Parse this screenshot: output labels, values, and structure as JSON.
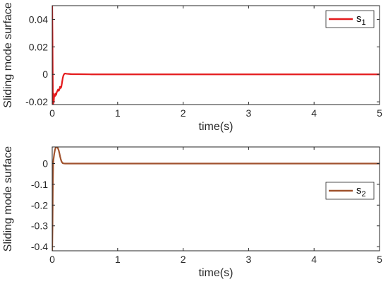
{
  "chart_data": [
    {
      "type": "line",
      "xlabel": "time(s)",
      "ylabel": "Sliding mode surface",
      "xlim": [
        0,
        5
      ],
      "ylim": [
        -0.022,
        0.05
      ],
      "xticks": [
        0,
        1,
        2,
        3,
        4,
        5
      ],
      "yticks": [
        -0.02,
        0,
        0.02,
        0.04
      ],
      "xtick_labels": [
        "0",
        "1",
        "2",
        "3",
        "4",
        "5"
      ],
      "ytick_labels": [
        "-0.02",
        "0",
        "0.02",
        "0.04"
      ],
      "grid": false,
      "legend_position": "top-right",
      "series": [
        {
          "name": "s",
          "name_sub": "1",
          "color": "#e41a1c",
          "x": [
            0,
            0.004,
            0.008,
            0.012,
            0.016,
            0.02,
            0.024,
            0.03,
            0.04,
            0.05,
            0.06,
            0.07,
            0.08,
            0.09,
            0.1,
            0.11,
            0.12,
            0.13,
            0.14,
            0.15,
            0.16,
            0.17,
            0.18,
            0.19,
            0.2,
            0.22,
            0.25,
            0.3,
            0.4,
            0.6,
            1,
            1.5,
            2,
            2.5,
            3,
            3.5,
            4,
            4.5,
            5
          ],
          "y": [
            0.05,
            0.03,
            0.0,
            -0.02,
            -0.022,
            -0.014,
            -0.02,
            -0.015,
            -0.016,
            -0.014,
            -0.015,
            -0.013,
            -0.012,
            -0.011,
            -0.012,
            -0.011,
            -0.009,
            -0.01,
            -0.009,
            -0.006,
            -0.003,
            -0.001,
            0.0,
            0.0005,
            0.0006,
            0.0004,
            0.0003,
            0.0001,
            0.0001,
            0.0,
            0.0,
            0.0,
            0.0,
            0.0,
            0.0,
            0.0,
            0.0,
            0.0,
            0.0
          ]
        }
      ]
    },
    {
      "type": "line",
      "xlabel": "time(s)",
      "ylabel": "Sliding mode surface",
      "xlim": [
        0,
        5
      ],
      "ylim": [
        -0.42,
        0.08
      ],
      "xticks": [
        0,
        1,
        2,
        3,
        4,
        5
      ],
      "yticks": [
        -0.4,
        -0.3,
        -0.2,
        -0.1,
        0
      ],
      "xtick_labels": [
        "0",
        "1",
        "2",
        "3",
        "4",
        "5"
      ],
      "ytick_labels": [
        "-0.4",
        "-0.3",
        "-0.2",
        "-0.1",
        "0"
      ],
      "grid": false,
      "legend_position": "right",
      "series": [
        {
          "name": "s",
          "name_sub": "2",
          "color": "#a0522d",
          "x": [
            0,
            0.005,
            0.01,
            0.015,
            0.02,
            0.03,
            0.04,
            0.05,
            0.06,
            0.07,
            0.08,
            0.09,
            0.1,
            0.11,
            0.12,
            0.13,
            0.14,
            0.15,
            0.16,
            0.18,
            0.2,
            0.25,
            0.3,
            0.5,
            1,
            2,
            3,
            4,
            5
          ],
          "y": [
            -0.42,
            -0.3,
            -0.1,
            0.0,
            0.02,
            0.045,
            0.063,
            0.074,
            0.079,
            0.08,
            0.078,
            0.072,
            0.063,
            0.05,
            0.035,
            0.022,
            0.012,
            0.006,
            0.002,
            0.0005,
            0.0,
            0.0,
            0.0,
            0.0,
            0.0,
            0.0,
            0.0,
            0.0,
            0.0
          ]
        }
      ]
    }
  ]
}
